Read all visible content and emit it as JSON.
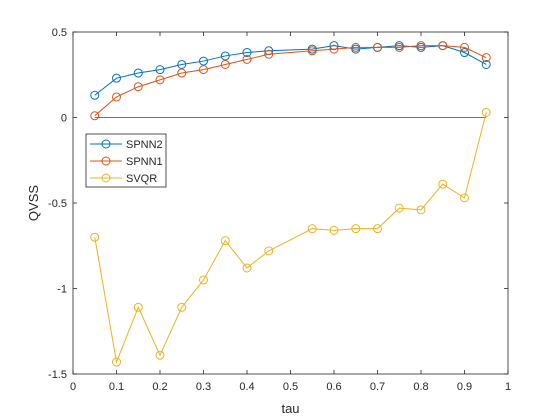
{
  "chart_data": {
    "type": "line",
    "xlabel": "tau",
    "ylabel": "QVSS",
    "xlim": [
      0,
      1
    ],
    "ylim": [
      -1.5,
      0.5
    ],
    "xticks": [
      0,
      0.1,
      0.2,
      0.3,
      0.4,
      0.5,
      0.6,
      0.7,
      0.8,
      0.9,
      1
    ],
    "xtick_labels": [
      "0",
      "0.1",
      "0.2",
      "0.3",
      "0.4",
      "0.5",
      "0.6",
      "0.7",
      "0.8",
      "0.9",
      "1"
    ],
    "yticks": [
      -1.5,
      -1,
      -0.5,
      0,
      0.5
    ],
    "ytick_labels": [
      "-1.5",
      "-1",
      "-0.5",
      "0",
      "0.5"
    ],
    "grid": false,
    "legend_position": "middle-left",
    "reference_line": {
      "y": 0,
      "x": [
        0.05,
        0.95
      ],
      "color": "#D95319"
    },
    "series": [
      {
        "name": "SPNN2",
        "color": "#0072BD",
        "x": [
          0.05,
          0.1,
          0.15,
          0.2,
          0.25,
          0.3,
          0.35,
          0.4,
          0.45,
          0.55,
          0.6,
          0.65,
          0.7,
          0.75,
          0.8,
          0.85,
          0.9,
          0.95
        ],
        "y": [
          0.13,
          0.23,
          0.26,
          0.28,
          0.31,
          0.33,
          0.36,
          0.38,
          0.39,
          0.4,
          0.42,
          0.4,
          0.41,
          0.42,
          0.41,
          0.42,
          0.38,
          0.31
        ]
      },
      {
        "name": "SPNN1",
        "color": "#D95319",
        "x": [
          0.05,
          0.1,
          0.15,
          0.2,
          0.25,
          0.3,
          0.35,
          0.4,
          0.45,
          0.55,
          0.6,
          0.65,
          0.7,
          0.75,
          0.8,
          0.85,
          0.9,
          0.95
        ],
        "y": [
          0.01,
          0.12,
          0.18,
          0.22,
          0.26,
          0.28,
          0.31,
          0.34,
          0.37,
          0.39,
          0.4,
          0.41,
          0.41,
          0.41,
          0.42,
          0.42,
          0.41,
          0.35
        ]
      },
      {
        "name": "SVQR",
        "color": "#EDB120",
        "x": [
          0.05,
          0.1,
          0.15,
          0.2,
          0.25,
          0.3,
          0.35,
          0.4,
          0.45,
          0.55,
          0.6,
          0.65,
          0.7,
          0.75,
          0.8,
          0.85,
          0.9,
          0.95
        ],
        "y": [
          -0.7,
          -1.43,
          -1.11,
          -1.39,
          -1.11,
          -0.95,
          -0.72,
          -0.88,
          -0.78,
          -0.65,
          -0.66,
          -0.65,
          -0.65,
          -0.53,
          -0.54,
          -0.39,
          -0.47,
          0.03
        ]
      }
    ]
  }
}
